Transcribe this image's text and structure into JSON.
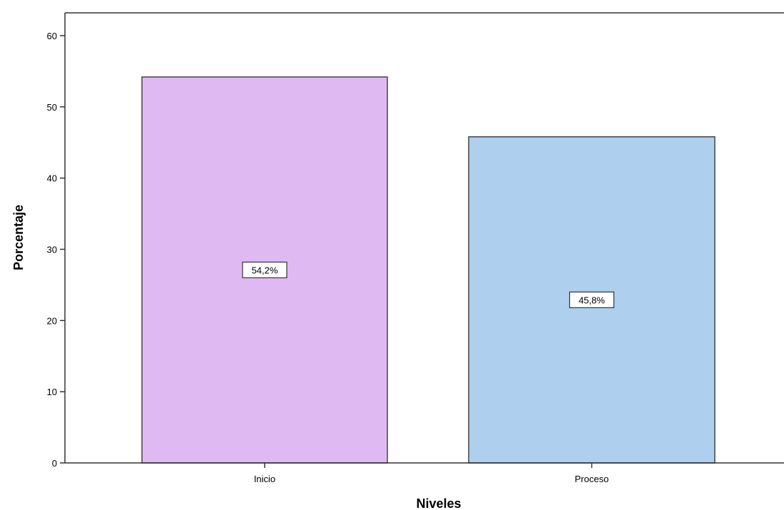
{
  "chart_data": {
    "type": "bar",
    "title": "",
    "xlabel": "Niveles",
    "ylabel": "Porcentaje",
    "categories": [
      "Inicio",
      "Proceso"
    ],
    "values": [
      54.2,
      45.8
    ],
    "data_labels": [
      "54,2%",
      "45,8%"
    ],
    "ylim": [
      0,
      62
    ],
    "yticks": [
      0,
      10,
      20,
      30,
      40,
      50,
      60
    ],
    "grid": false,
    "legend": "none",
    "colors": [
      "#dfbaf2",
      "#aecfed"
    ],
    "edge_color": "#444444"
  }
}
